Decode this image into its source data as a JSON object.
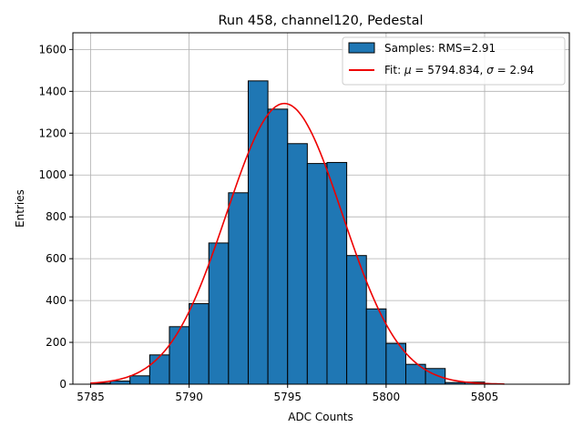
{
  "chart_data": {
    "type": "bar",
    "title": "Run 458, channel120, Pedestal",
    "xlabel": "ADC Counts",
    "ylabel": "Entries",
    "xlim": [
      5784.1,
      5809.3
    ],
    "ylim": [
      0,
      1680
    ],
    "grid": true,
    "legend_position": "top-right",
    "xticks": [
      5785,
      5790,
      5795,
      5800,
      5805
    ],
    "yticks": [
      0,
      200,
      400,
      600,
      800,
      1000,
      1200,
      1400,
      1600
    ],
    "histogram": {
      "name": "Samples: RMS=2.91",
      "bin_edges": [
        5785,
        5786,
        5787,
        5788,
        5789,
        5790,
        5791,
        5792,
        5793,
        5794,
        5795,
        5796,
        5797,
        5798,
        5799,
        5800,
        5801,
        5802,
        5803,
        5804,
        5805
      ],
      "values": [
        5,
        15,
        40,
        140,
        275,
        385,
        675,
        915,
        1450,
        1315,
        1150,
        1055,
        1060,
        615,
        360,
        195,
        95,
        75,
        8,
        10
      ],
      "color": "#1f77b4",
      "edge_color": "#000000"
    },
    "fit": {
      "legend_prefix": "Fit: ",
      "mu_symbol": "μ",
      "mu_text": " = 5794.834, ",
      "sigma_symbol": "σ",
      "sigma_text": " = 2.94",
      "mu": 5794.834,
      "sigma": 2.94,
      "amplitude": 1342,
      "x_range": [
        5785,
        5806
      ],
      "color": "#ee0000"
    }
  }
}
